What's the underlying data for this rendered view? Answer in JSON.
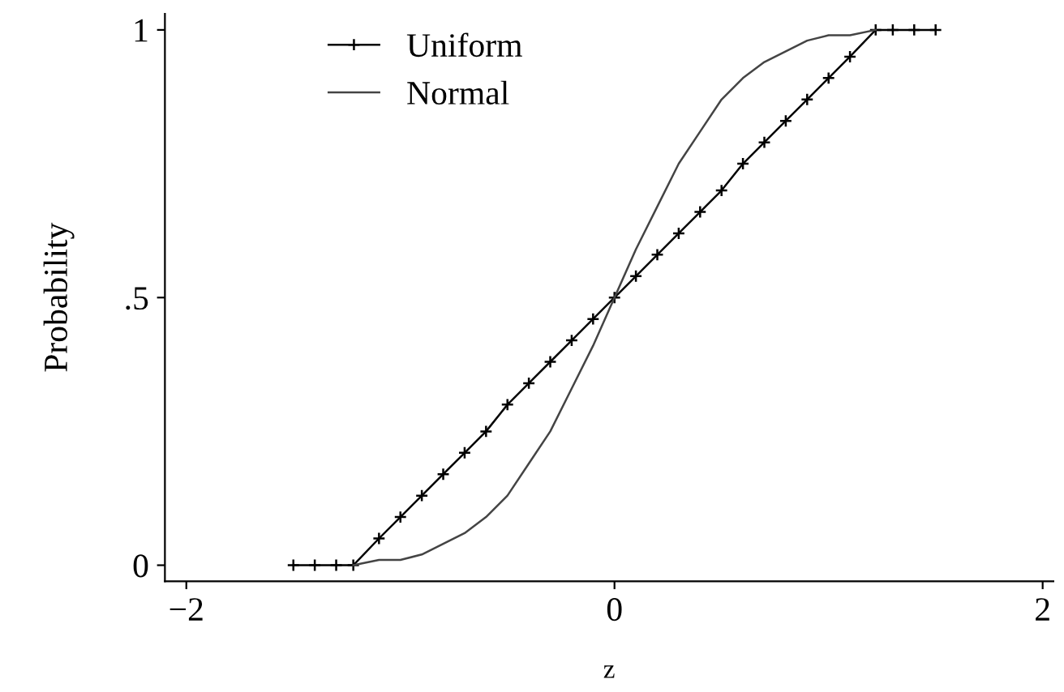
{
  "chart_data": {
    "type": "line",
    "xlabel": "z",
    "ylabel": "Probability",
    "xlim": [
      -2.1,
      2.05
    ],
    "xticks": [
      {
        "value": -2,
        "label": "−2"
      },
      0,
      2
    ],
    "ylim": [
      -0.03,
      1.03
    ],
    "yticks": [
      0,
      {
        "value": 0.5,
        "label": ".5"
      },
      1
    ],
    "grid": false,
    "legend": "top left",
    "series": [
      {
        "name": "Uniform",
        "color": "#000000",
        "marker": "cross",
        "line_style": "solid",
        "x": [
          -1.5,
          -1.4,
          -1.3,
          -1.22,
          -1.1,
          -1.0,
          -0.9,
          -0.8,
          -0.7,
          -0.6,
          -0.5,
          -0.4,
          -0.3,
          -0.2,
          -0.1,
          0,
          0.1,
          0.2,
          0.3,
          0.4,
          0.5,
          0.6,
          0.7,
          0.8,
          0.9,
          1.0,
          1.1,
          1.22,
          1.3,
          1.4,
          1.5
        ],
        "values": [
          0,
          0,
          0,
          0,
          0.05,
          0.09,
          0.13,
          0.17,
          0.21,
          0.25,
          0.3,
          0.34,
          0.38,
          0.42,
          0.46,
          0.5,
          0.54,
          0.58,
          0.62,
          0.66,
          0.7,
          0.75,
          0.79,
          0.83,
          0.87,
          0.91,
          0.95,
          1,
          1,
          1,
          1
        ]
      },
      {
        "name": "Normal",
        "color": "#444444",
        "marker": "none",
        "line_style": "solid",
        "x": [
          -1.22,
          -1.1,
          -1.0,
          -0.9,
          -0.8,
          -0.7,
          -0.6,
          -0.5,
          -0.4,
          -0.3,
          -0.2,
          -0.1,
          0,
          0.1,
          0.2,
          0.3,
          0.4,
          0.5,
          0.6,
          0.7,
          0.8,
          0.9,
          1.0,
          1.1,
          1.22
        ],
        "values": [
          0,
          0.01,
          0.01,
          0.02,
          0.04,
          0.06,
          0.09,
          0.13,
          0.19,
          0.25,
          0.33,
          0.41,
          0.5,
          0.59,
          0.67,
          0.75,
          0.81,
          0.87,
          0.91,
          0.94,
          0.96,
          0.98,
          0.99,
          0.99,
          1
        ]
      }
    ]
  }
}
